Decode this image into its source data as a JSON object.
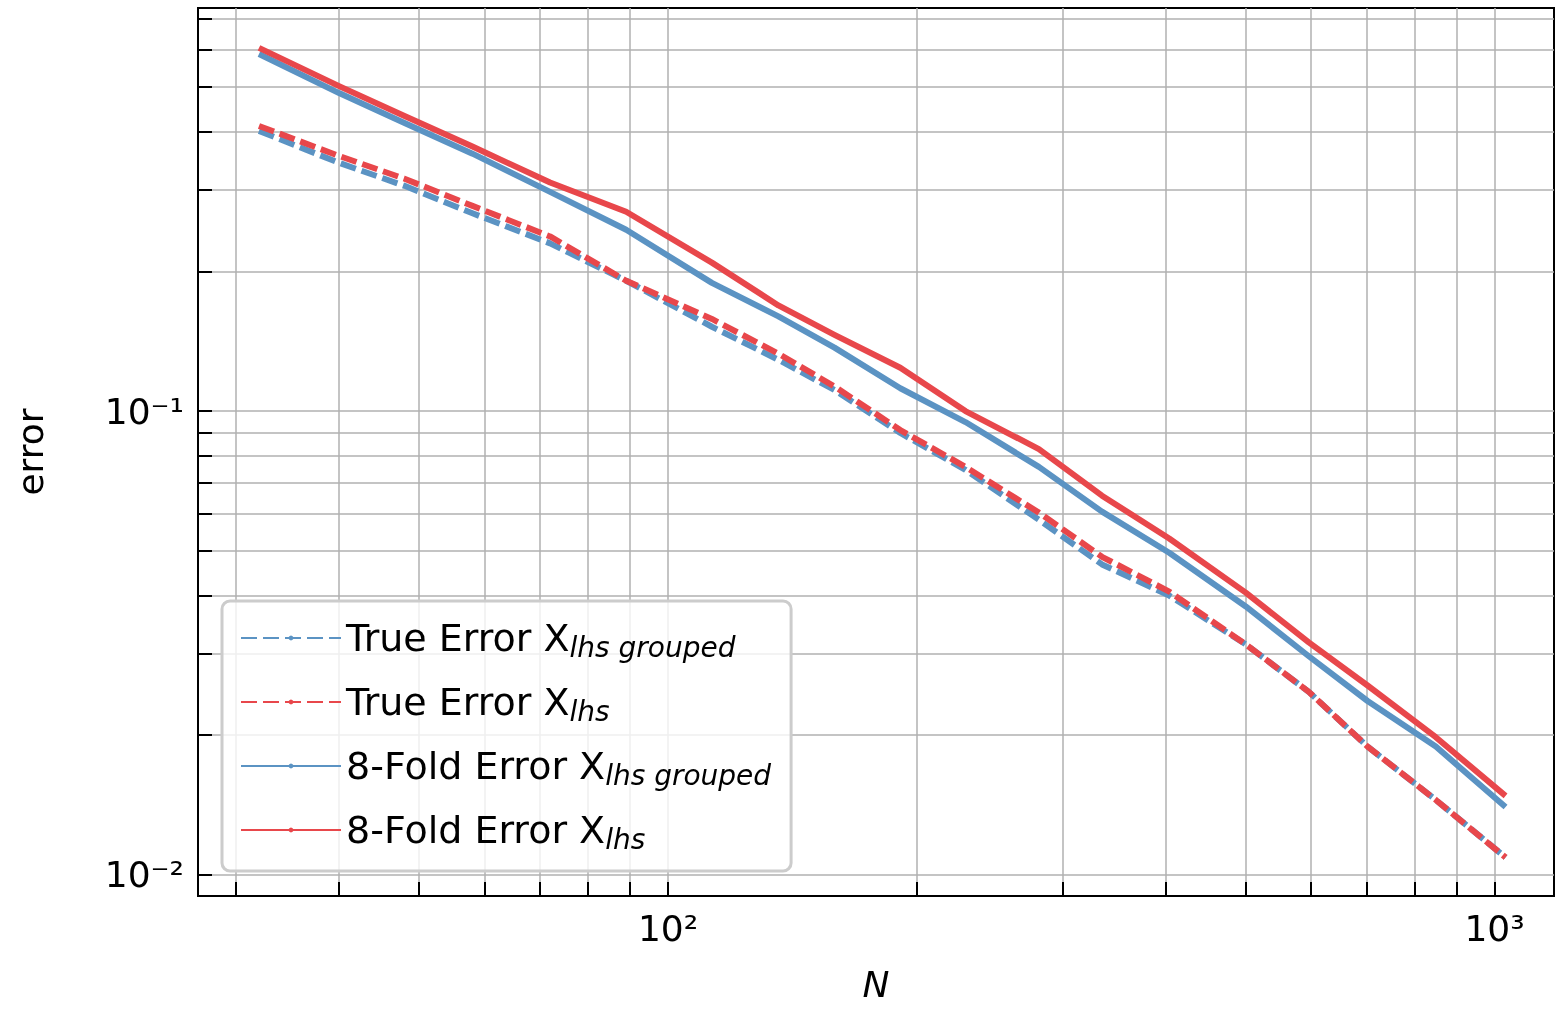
{
  "chart_data": {
    "type": "line",
    "xlabel": "N",
    "ylabel": "error",
    "x": [
      32,
      40,
      48,
      58,
      72,
      89,
      113,
      136,
      159,
      191,
      229,
      281,
      335,
      404,
      500,
      596,
      702,
      849,
      1031
    ],
    "series": [
      {
        "name": "True Error X$_{lhs grouped}$",
        "color": "#5b93c3",
        "line_style": "dashed",
        "values": [
          0.402,
          0.343,
          0.306,
          0.267,
          0.23,
          0.191,
          0.152,
          0.129,
          0.111,
          0.0897,
          0.0747,
          0.0583,
          0.0467,
          0.04,
          0.0314,
          0.0248,
          0.0189,
          0.0145,
          0.0109
        ]
      },
      {
        "name": "True Error X$_{lhs}$",
        "color": "#e8474b",
        "line_style": "dashed",
        "values": [
          0.412,
          0.355,
          0.317,
          0.277,
          0.238,
          0.191,
          0.158,
          0.133,
          0.113,
          0.091,
          0.0758,
          0.0604,
          0.0485,
          0.0408,
          0.0314,
          0.0248,
          0.0189,
          0.0145,
          0.0109
        ]
      },
      {
        "name": "8-Fold Error X$_{lhs grouped}$",
        "color": "#5b93c3",
        "line_style": "solid",
        "values": [
          0.589,
          0.485,
          0.418,
          0.359,
          0.297,
          0.246,
          0.189,
          0.16,
          0.137,
          0.112,
          0.0947,
          0.0758,
          0.0607,
          0.0495,
          0.0379,
          0.0296,
          0.0237,
          0.0189,
          0.014
        ]
      },
      {
        "name": "8-Fold Error X$_{lhs}$",
        "color": "#e8474b",
        "line_style": "solid",
        "values": [
          0.607,
          0.502,
          0.433,
          0.372,
          0.311,
          0.269,
          0.209,
          0.169,
          0.146,
          0.124,
          0.1,
          0.0828,
          0.0657,
          0.0531,
          0.0406,
          0.0317,
          0.0256,
          0.0198,
          0.0148
        ]
      }
    ],
    "log": "xy",
    "xlim": [
      27,
      1180
    ],
    "ylim": [
      0.009,
      0.74
    ],
    "xticks": [
      {
        "value": 30,
        "label": null
      },
      {
        "value": 40,
        "label": null
      },
      {
        "value": 50,
        "label": null
      },
      {
        "value": 60,
        "label": null
      },
      {
        "value": 70,
        "label": null
      },
      {
        "value": 80,
        "label": null
      },
      {
        "value": 90,
        "label": null
      },
      {
        "value": 100,
        "label": "10²"
      },
      {
        "value": 200,
        "label": null
      },
      {
        "value": 300,
        "label": null
      },
      {
        "value": 400,
        "label": null
      },
      {
        "value": 500,
        "label": null
      },
      {
        "value": 600,
        "label": null
      },
      {
        "value": 700,
        "label": null
      },
      {
        "value": 800,
        "label": null
      },
      {
        "value": 900,
        "label": null
      },
      {
        "value": 1000,
        "label": "10³"
      }
    ],
    "yticks": [
      {
        "value": 0.01,
        "label": "10⁻²"
      },
      {
        "value": 0.02,
        "label": null
      },
      {
        "value": 0.03,
        "label": null
      },
      {
        "value": 0.04,
        "label": null
      },
      {
        "value": 0.05,
        "label": null
      },
      {
        "value": 0.06,
        "label": null
      },
      {
        "value": 0.07,
        "label": null
      },
      {
        "value": 0.08,
        "label": null
      },
      {
        "value": 0.09,
        "label": null
      },
      {
        "value": 0.1,
        "label": "10⁻¹"
      },
      {
        "value": 0.2,
        "label": null
      },
      {
        "value": 0.3,
        "label": null
      },
      {
        "value": 0.4,
        "label": null
      },
      {
        "value": 0.5,
        "label": null
      },
      {
        "value": 0.6,
        "label": null
      },
      {
        "value": 0.7,
        "label": null
      }
    ],
    "grid": true,
    "legend": "bottom left",
    "marker": "none"
  }
}
